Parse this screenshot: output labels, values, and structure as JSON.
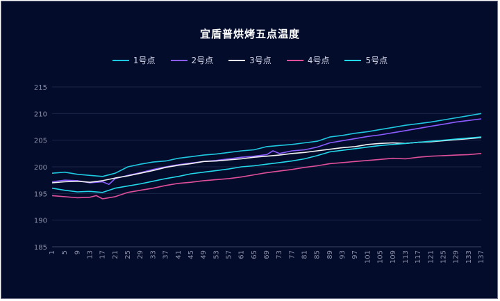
{
  "chart_data": {
    "type": "line",
    "title": "宜盾普烘烤五点温度",
    "ylim": [
      185,
      215
    ],
    "yticks": [
      185,
      190,
      195,
      200,
      205,
      210,
      215
    ],
    "xlim": [
      1,
      137
    ],
    "xticks": [
      1,
      5,
      9,
      13,
      17,
      21,
      25,
      29,
      33,
      37,
      41,
      45,
      49,
      53,
      57,
      61,
      65,
      69,
      73,
      77,
      81,
      85,
      89,
      93,
      97,
      101,
      105,
      109,
      113,
      117,
      121,
      125,
      129,
      133,
      137
    ],
    "grid": true,
    "legend_position": "top",
    "series": [
      {
        "name": "1号点",
        "color": "#1ec8e0",
        "points": [
          [
            1,
            198.8
          ],
          [
            5,
            199.0
          ],
          [
            9,
            198.6
          ],
          [
            13,
            198.4
          ],
          [
            17,
            198.2
          ],
          [
            21,
            198.8
          ],
          [
            25,
            200.0
          ],
          [
            29,
            200.5
          ],
          [
            33,
            200.9
          ],
          [
            37,
            201.1
          ],
          [
            41,
            201.6
          ],
          [
            45,
            201.9
          ],
          [
            49,
            202.2
          ],
          [
            53,
            202.4
          ],
          [
            57,
            202.7
          ],
          [
            61,
            203.0
          ],
          [
            65,
            203.2
          ],
          [
            69,
            203.8
          ],
          [
            73,
            204.0
          ],
          [
            77,
            204.2
          ],
          [
            81,
            204.5
          ],
          [
            85,
            204.8
          ],
          [
            89,
            205.6
          ],
          [
            93,
            205.9
          ],
          [
            97,
            206.3
          ],
          [
            101,
            206.6
          ],
          [
            105,
            207.0
          ],
          [
            109,
            207.4
          ],
          [
            113,
            207.8
          ],
          [
            117,
            208.1
          ],
          [
            121,
            208.4
          ],
          [
            125,
            208.8
          ],
          [
            129,
            209.2
          ],
          [
            133,
            209.6
          ],
          [
            137,
            210.0
          ]
        ]
      },
      {
        "name": "2号点",
        "color": "#8a5cff",
        "points": [
          [
            1,
            197.2
          ],
          [
            5,
            197.5
          ],
          [
            9,
            197.4
          ],
          [
            13,
            197.0
          ],
          [
            17,
            197.2
          ],
          [
            19,
            196.7
          ],
          [
            21,
            197.8
          ],
          [
            25,
            198.4
          ],
          [
            29,
            198.9
          ],
          [
            33,
            199.5
          ],
          [
            37,
            200.0
          ],
          [
            41,
            200.4
          ],
          [
            45,
            200.7
          ],
          [
            49,
            201.0
          ],
          [
            53,
            201.2
          ],
          [
            57,
            201.5
          ],
          [
            61,
            201.8
          ],
          [
            65,
            202.0
          ],
          [
            69,
            202.3
          ],
          [
            71,
            203.0
          ],
          [
            73,
            202.5
          ],
          [
            77,
            203.0
          ],
          [
            81,
            203.2
          ],
          [
            85,
            203.7
          ],
          [
            89,
            204.5
          ],
          [
            93,
            204.9
          ],
          [
            97,
            205.3
          ],
          [
            101,
            205.7
          ],
          [
            105,
            206.0
          ],
          [
            109,
            206.4
          ],
          [
            113,
            206.8
          ],
          [
            117,
            207.2
          ],
          [
            121,
            207.6
          ],
          [
            125,
            208.0
          ],
          [
            129,
            208.4
          ],
          [
            133,
            208.7
          ],
          [
            137,
            209.0
          ]
        ]
      },
      {
        "name": "3号点",
        "color": "#f2f2f2",
        "points": [
          [
            1,
            197.0
          ],
          [
            5,
            197.2
          ],
          [
            9,
            197.3
          ],
          [
            13,
            197.1
          ],
          [
            17,
            197.4
          ],
          [
            21,
            197.9
          ],
          [
            25,
            198.3
          ],
          [
            29,
            198.8
          ],
          [
            33,
            199.3
          ],
          [
            37,
            199.9
          ],
          [
            41,
            200.3
          ],
          [
            45,
            200.6
          ],
          [
            49,
            201.0
          ],
          [
            53,
            201.1
          ],
          [
            57,
            201.3
          ],
          [
            61,
            201.5
          ],
          [
            65,
            201.8
          ],
          [
            69,
            202.0
          ],
          [
            73,
            202.2
          ],
          [
            77,
            202.5
          ],
          [
            81,
            202.7
          ],
          [
            85,
            203.0
          ],
          [
            89,
            203.3
          ],
          [
            93,
            203.6
          ],
          [
            97,
            203.8
          ],
          [
            101,
            204.2
          ],
          [
            105,
            204.4
          ],
          [
            109,
            204.5
          ],
          [
            113,
            204.4
          ],
          [
            117,
            204.6
          ],
          [
            121,
            204.7
          ],
          [
            125,
            204.9
          ],
          [
            129,
            205.1
          ],
          [
            133,
            205.3
          ],
          [
            137,
            205.5
          ]
        ]
      },
      {
        "name": "4号点",
        "color": "#e0509a",
        "points": [
          [
            1,
            194.6
          ],
          [
            5,
            194.4
          ],
          [
            9,
            194.2
          ],
          [
            13,
            194.3
          ],
          [
            15,
            194.6
          ],
          [
            17,
            194.0
          ],
          [
            21,
            194.4
          ],
          [
            25,
            195.2
          ],
          [
            29,
            195.6
          ],
          [
            33,
            196.0
          ],
          [
            37,
            196.5
          ],
          [
            41,
            196.9
          ],
          [
            45,
            197.1
          ],
          [
            49,
            197.4
          ],
          [
            53,
            197.6
          ],
          [
            57,
            197.8
          ],
          [
            61,
            198.1
          ],
          [
            65,
            198.5
          ],
          [
            69,
            198.9
          ],
          [
            73,
            199.2
          ],
          [
            77,
            199.5
          ],
          [
            81,
            199.9
          ],
          [
            85,
            200.2
          ],
          [
            89,
            200.6
          ],
          [
            93,
            200.8
          ],
          [
            97,
            201.0
          ],
          [
            101,
            201.2
          ],
          [
            105,
            201.4
          ],
          [
            109,
            201.6
          ],
          [
            113,
            201.5
          ],
          [
            117,
            201.8
          ],
          [
            121,
            202.0
          ],
          [
            125,
            202.1
          ],
          [
            129,
            202.2
          ],
          [
            133,
            202.3
          ],
          [
            137,
            202.5
          ]
        ]
      },
      {
        "name": "5号点",
        "color": "#22d8ea",
        "points": [
          [
            1,
            196.0
          ],
          [
            5,
            195.6
          ],
          [
            9,
            195.3
          ],
          [
            13,
            195.4
          ],
          [
            17,
            195.2
          ],
          [
            21,
            196.0
          ],
          [
            25,
            196.4
          ],
          [
            29,
            196.8
          ],
          [
            33,
            197.3
          ],
          [
            37,
            197.8
          ],
          [
            41,
            198.2
          ],
          [
            45,
            198.7
          ],
          [
            49,
            199.0
          ],
          [
            53,
            199.3
          ],
          [
            57,
            199.6
          ],
          [
            61,
            200.0
          ],
          [
            65,
            200.2
          ],
          [
            69,
            200.5
          ],
          [
            73,
            200.8
          ],
          [
            77,
            201.1
          ],
          [
            81,
            201.5
          ],
          [
            85,
            202.1
          ],
          [
            89,
            202.8
          ],
          [
            93,
            203.1
          ],
          [
            97,
            203.4
          ],
          [
            101,
            203.7
          ],
          [
            105,
            204.0
          ],
          [
            109,
            204.2
          ],
          [
            113,
            204.4
          ],
          [
            117,
            204.6
          ],
          [
            121,
            204.8
          ],
          [
            125,
            205.0
          ],
          [
            129,
            205.2
          ],
          [
            133,
            205.4
          ],
          [
            137,
            205.6
          ]
        ]
      }
    ]
  }
}
